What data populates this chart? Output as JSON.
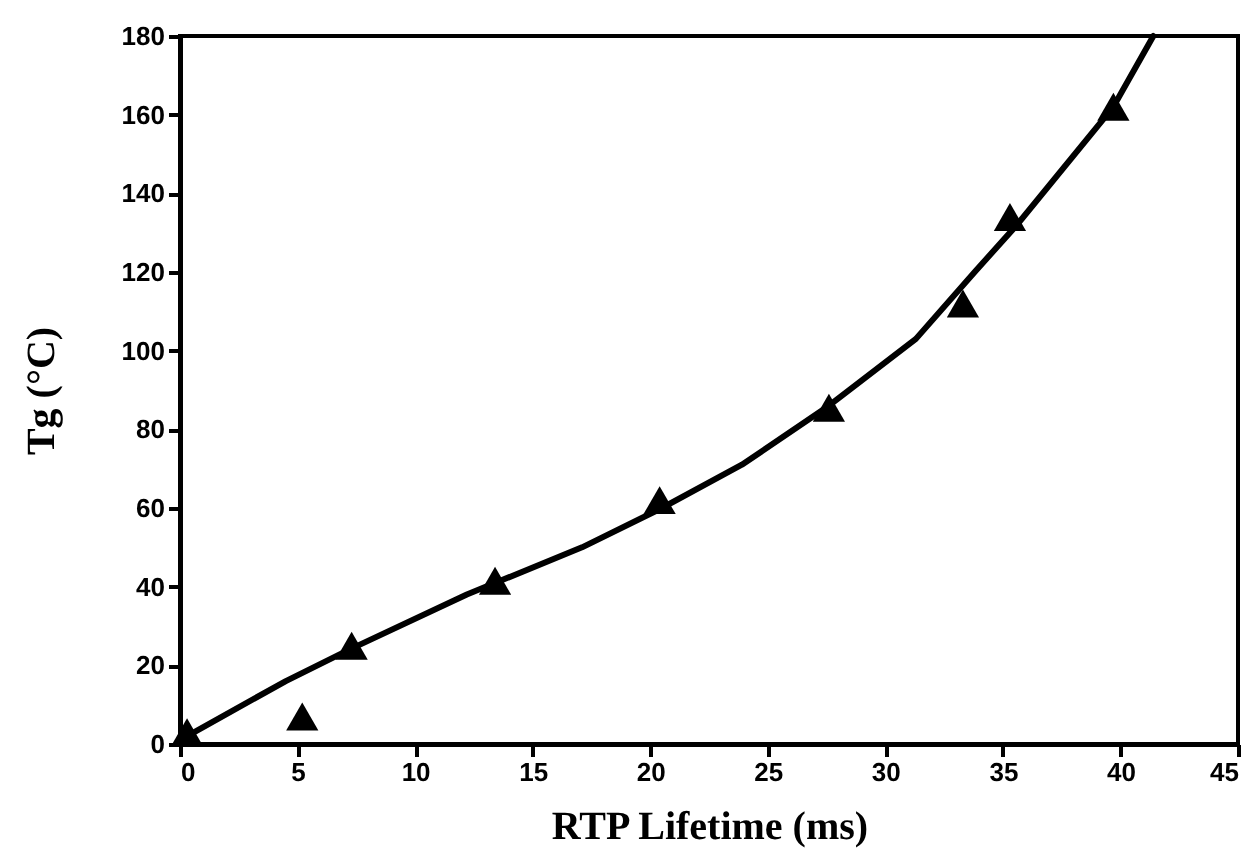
{
  "chart_data": {
    "type": "scatter",
    "xlabel": "RTP Lifetime (ms)",
    "ylabel": "Tg (°C)",
    "xlim": [
      0,
      45
    ],
    "xticks": [
      0,
      5,
      10,
      15,
      20,
      25,
      30,
      35,
      40,
      45
    ],
    "ylim": [
      0,
      180
    ],
    "yticks": [
      0,
      20,
      40,
      60,
      80,
      100,
      120,
      140,
      160,
      180
    ],
    "grid": false,
    "series": [
      {
        "marker": "triangle",
        "color": "#000000",
        "x": [
          0.3,
          5.2,
          7.3,
          13.4,
          20.4,
          27.6,
          33.3,
          35.3,
          39.7
        ],
        "values": [
          3,
          7,
          25,
          41.5,
          62,
          85.5,
          112,
          134,
          162
        ]
      },
      {
        "type": "line",
        "marker": "none",
        "line_style": "solid",
        "color": "#000000",
        "x": [
          0,
          4.5,
          7.2,
          12.2,
          17.1,
          20.5,
          23.9,
          27.6,
          31.3,
          33.8,
          35.6,
          39.7,
          41.4
        ],
        "values": [
          1,
          16,
          24,
          38,
          50,
          60,
          71,
          86,
          103,
          120,
          132,
          162,
          180
        ]
      }
    ]
  }
}
